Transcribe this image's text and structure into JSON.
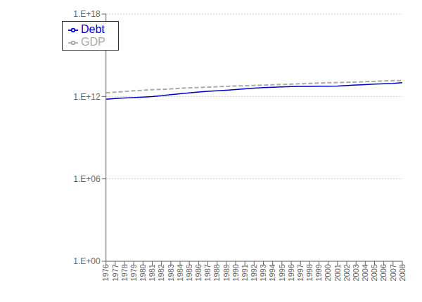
{
  "chart_data": {
    "type": "line",
    "x": [
      1976,
      1977,
      1978,
      1979,
      1980,
      1981,
      1982,
      1983,
      1984,
      1985,
      1986,
      1987,
      1988,
      1989,
      1990,
      1991,
      1992,
      1993,
      1994,
      1995,
      1996,
      1997,
      1998,
      1999,
      2000,
      2001,
      2002,
      2003,
      2004,
      2005,
      2006,
      2007,
      2008
    ],
    "series": [
      {
        "name": "Debt",
        "color": "#0000cc",
        "line_style": "solid",
        "values": [
          631900000000,
          700100000000,
          771500000000,
          829500000000,
          909100000000,
          994800000000,
          1137300000000,
          1371700000000,
          1564600000000,
          1817500000000,
          2120600000000,
          2346100000000,
          2601300000000,
          2867800000000,
          3206600000000,
          3598200000000,
          4002000000000,
          4351200000000,
          4643700000000,
          4921000000000,
          5181900000000,
          5369700000000,
          5478200000000,
          5605500000000,
          5628700000000,
          5769900000000,
          6198400000000,
          6760000000000,
          7354700000000,
          7905300000000,
          8451400000000,
          8950700000000,
          9985500000000
        ]
      },
      {
        "name": "GDP",
        "color": "#aaaaaa",
        "line_style": "dashed",
        "values": [
          1825300000000,
          2030900000000,
          2293800000000,
          2562700000000,
          2788200000000,
          3126800000000,
          3253200000000,
          3534600000000,
          3930900000000,
          4217500000000,
          4460100000000,
          4736400000000,
          5100400000000,
          5482100000000,
          5800500000000,
          5992100000000,
          6342300000000,
          6667400000000,
          7085200000000,
          7414700000000,
          7838500000000,
          8332400000000,
          8793500000000,
          9353500000000,
          9951500000000,
          10286200000000,
          10642300000000,
          11142200000000,
          11867800000000,
          12638400000000,
          13398900000000,
          14077600000000,
          14441400000000
        ]
      }
    ],
    "xlim": [
      1976,
      2008
    ],
    "xticks": [
      1976,
      1977,
      1978,
      1979,
      1980,
      1981,
      1982,
      1983,
      1984,
      1985,
      1986,
      1987,
      1988,
      1989,
      1990,
      1991,
      1992,
      1993,
      1994,
      1995,
      1996,
      1997,
      1998,
      1999,
      2000,
      2001,
      2002,
      2003,
      2004,
      2005,
      2006,
      2007,
      2008
    ],
    "ylim": [
      1,
      1e+18
    ],
    "yticks": [
      {
        "value": 1,
        "label": "1.E+00"
      },
      {
        "value": 1000000.0,
        "label": "1.E+06"
      },
      {
        "value": 1000000000000.0,
        "label": "1.E+12"
      },
      {
        "value": 1e+18,
        "label": "1.E+18"
      }
    ],
    "log": "y",
    "grid": "y",
    "legend": "upper left"
  }
}
